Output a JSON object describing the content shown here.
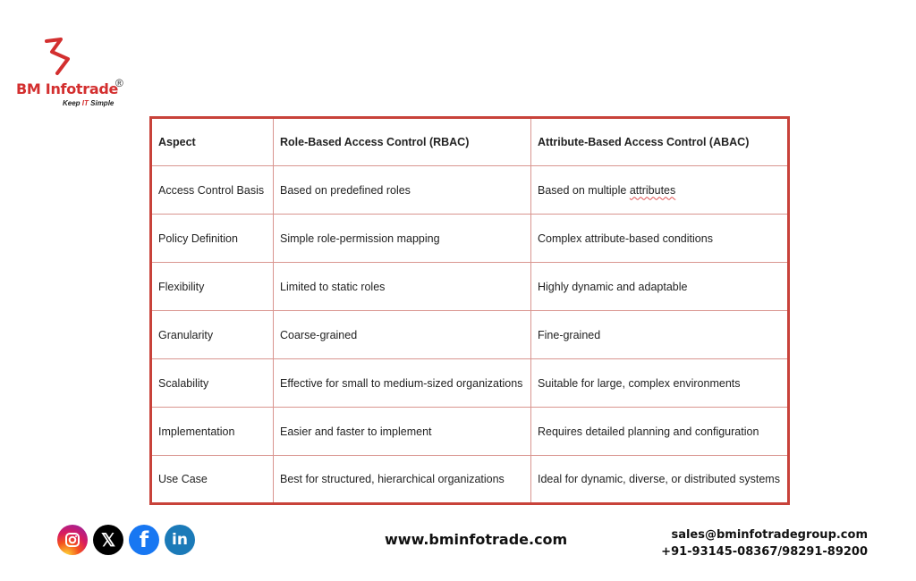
{
  "brand": {
    "name": "BM Infotrade",
    "registered": "®",
    "tagline_pre": "Keep ",
    "tagline_it": "IT",
    "tagline_post": " Simple",
    "color": "#d32f2f"
  },
  "table": {
    "headers": [
      "Aspect",
      "Role-Based Access Control (RBAC)",
      "Attribute-Based Access Control (ABAC)"
    ],
    "rows": [
      [
        "Access Control Basis",
        "Based on predefined roles",
        "Based on multiple attributes"
      ],
      [
        "Policy Definition",
        "Simple role-permission mapping",
        "Complex attribute-based conditions"
      ],
      [
        "Flexibility",
        "Limited to static roles",
        "Highly dynamic and adaptable"
      ],
      [
        "Granularity",
        "Coarse-grained",
        "Fine-grained"
      ],
      [
        "Scalability",
        "Effective for small to medium-sized organizations",
        "Suitable for large, complex environments"
      ],
      [
        "Implementation",
        "Easier and faster to implement",
        "Requires detailed planning and configuration"
      ],
      [
        "Use Case",
        "Best for structured, hierarchical organizations",
        "Ideal for dynamic, diverse, or distributed systems"
      ]
    ],
    "border_color": "#c8423a"
  },
  "footer": {
    "social": [
      "instagram-icon",
      "x-icon",
      "facebook-icon",
      "linkedin-icon"
    ],
    "x_glyph": "𝕏",
    "fb_glyph": "f",
    "li_glyph": "in",
    "website": "www.bminfotrade.com",
    "email": "sales@bminfotradegroup.com",
    "phone": "+91-93145-08367/98291-89200"
  }
}
